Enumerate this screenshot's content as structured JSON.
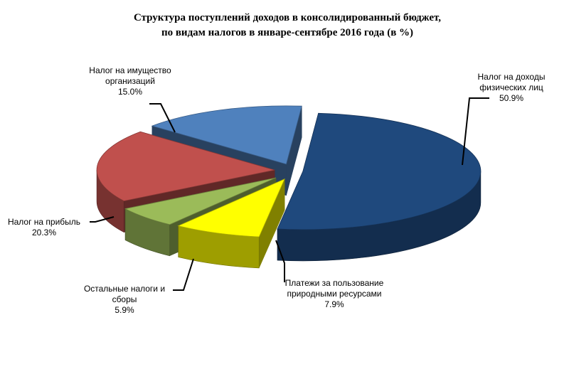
{
  "chart_data": {
    "type": "pie",
    "title_lines": [
      "Структура  поступлений доходов  в консолидированный  бюджет,",
      "по видам налогов в январе-сентябре 2016 года  (в %)"
    ],
    "unit": "%",
    "legend": "none",
    "slices": [
      {
        "label_lines": [
          "Налог на доходы",
          "физических лиц"
        ],
        "value_text": "50.9%",
        "value": 50.9,
        "color": "#1F497D"
      },
      {
        "label_lines": [
          "Платежи за пользование",
          "природными ресурсами"
        ],
        "value_text": "7.9%",
        "value": 7.9,
        "color": "#FFFF00"
      },
      {
        "label_lines": [
          "Остальные налоги и",
          "сборы"
        ],
        "value_text": "5.9%",
        "value": 5.9,
        "color": "#9BBB59"
      },
      {
        "label_lines": [
          "Налог на прибыль"
        ],
        "value_text": "20.3%",
        "value": 20.3,
        "color": "#C0504D"
      },
      {
        "label_lines": [
          "Налог на имущество",
          "организаций"
        ],
        "value_text": "15.0%",
        "value": 15.0,
        "color": "#4F81BD"
      }
    ]
  }
}
